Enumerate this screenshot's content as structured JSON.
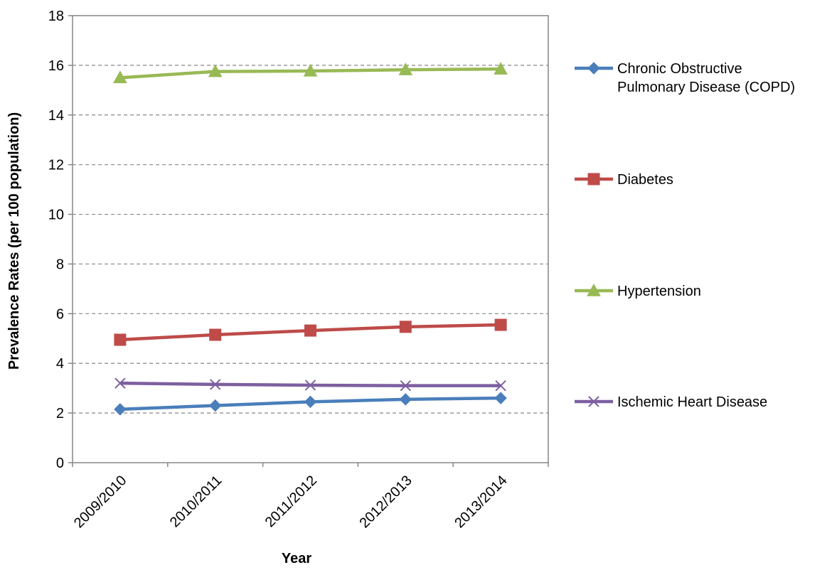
{
  "chart_data": {
    "type": "line",
    "title": "",
    "xlabel": "Year",
    "ylabel": "Prevalence Rates (per 100 population)",
    "categories": [
      "2009/2010",
      "2010/2011",
      "2011/2012",
      "2012/2013",
      "2013/2014"
    ],
    "ylim": [
      0,
      18
    ],
    "yticks": [
      0,
      2,
      4,
      6,
      8,
      10,
      12,
      14,
      16,
      18
    ],
    "grid": "horizontal-dashed",
    "legend_position": "right",
    "series": [
      {
        "name": "Chronic Obstructive Pulmonary Disease (COPD)",
        "values": [
          2.15,
          2.3,
          2.45,
          2.55,
          2.6
        ],
        "color": "#4a7ebb",
        "marker": "diamond"
      },
      {
        "name": "Diabetes",
        "values": [
          4.95,
          5.15,
          5.32,
          5.47,
          5.55
        ],
        "color": "#be4b48",
        "marker": "square"
      },
      {
        "name": "Hypertension",
        "values": [
          15.5,
          15.75,
          15.77,
          15.82,
          15.85
        ],
        "color": "#98b954",
        "marker": "triangle"
      },
      {
        "name": "Ischemic Heart Disease",
        "values": [
          3.2,
          3.15,
          3.12,
          3.1,
          3.1
        ],
        "color": "#7d5fa0",
        "marker": "x"
      }
    ],
    "legend_lines": [
      [
        "Chronic Obstructive",
        "Pulmonary Disease (COPD)"
      ],
      [
        "Diabetes"
      ],
      [
        "Hypertension"
      ],
      [
        "Ischemic Heart Disease"
      ]
    ]
  }
}
